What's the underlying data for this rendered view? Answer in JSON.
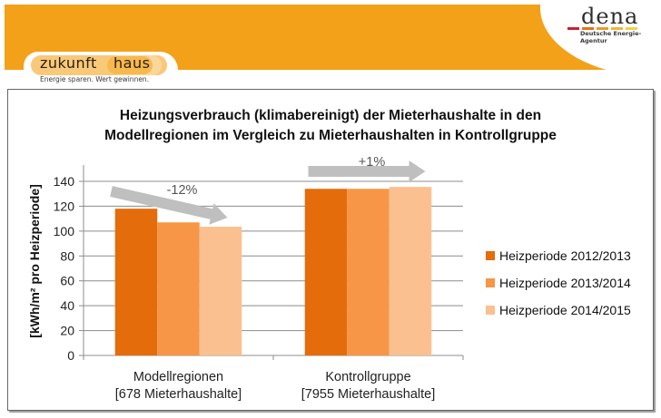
{
  "header": {
    "brand_left_word1": "zukunft",
    "brand_left_word2": "haus",
    "brand_left_tagline": "Energie sparen. Wert gewinnen.",
    "brand_right": "dena",
    "brand_right_sub": "Deutsche Energie-Agentur",
    "banner_color": "#f3a118",
    "dena_stripe_colors": [
      "#c8202f",
      "#e2731c",
      "#e99a2a",
      "#efb53a",
      "#f2cf4a"
    ]
  },
  "chart_data": {
    "type": "bar",
    "title_lines": [
      "Heizungsverbrauch (klimabereinigt) der Mieterhaushalte in den",
      "Modellregionen im Vergleich zu Mieterhaushalten in Kontrollgruppe"
    ],
    "ylabel": "[kWh/m² pro Heizperiode]",
    "xlabel": "",
    "ylim": [
      0,
      150
    ],
    "yticks": [
      0,
      20,
      40,
      60,
      80,
      100,
      120,
      140
    ],
    "grid": true,
    "legend_position": "right",
    "categories": [
      {
        "line1": "Modellregionen",
        "line2": "[678 Mieterhaushalte]"
      },
      {
        "line1": "Kontrollgruppe",
        "line2": "[7955 Mieterhaushalte]"
      }
    ],
    "series": [
      {
        "name": "Heizperiode 2012/2013",
        "color": "#e46c0a",
        "values": [
          118,
          134
        ]
      },
      {
        "name": "Heizperiode 2013/2014",
        "color": "#f79646",
        "values": [
          107,
          134
        ]
      },
      {
        "name": "Heizperiode 2014/2015",
        "color": "#fac090",
        "values": [
          103.5,
          135.5
        ]
      }
    ],
    "annotations": [
      {
        "label": "-12%",
        "category_index": 0,
        "direction": "down"
      },
      {
        "label": "+1%",
        "category_index": 1,
        "direction": "flat"
      }
    ]
  }
}
